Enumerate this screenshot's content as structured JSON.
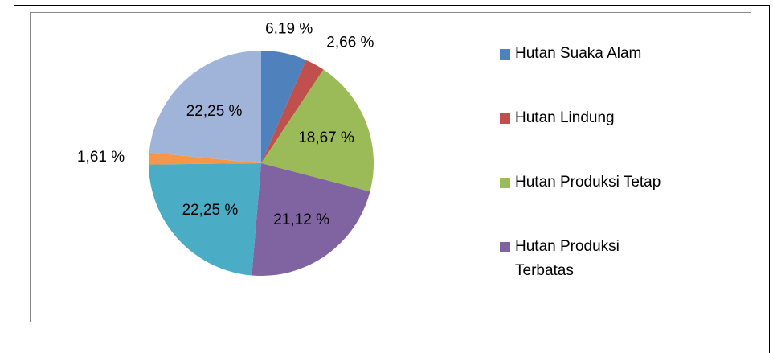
{
  "chart_data": {
    "type": "pie",
    "categories": [
      "Hutan Suaka Alam",
      "Hutan Lindung",
      "Hutan Produksi Tetap",
      "Hutan Produksi Terbatas",
      null,
      null,
      null
    ],
    "values": [
      6.19,
      2.66,
      18.67,
      21.12,
      22.25,
      1.61,
      22.25
    ],
    "value_labels": [
      "6,19 %",
      "2,66 %",
      "18,67 %",
      "21,12 %",
      "22,25 %",
      "1,61 %",
      "22,25 %"
    ],
    "colors": [
      "#4f81bd",
      "#c0504d",
      "#9bbb59",
      "#8064a2",
      "#4bacc6",
      "#f79646",
      "#a0b4d9"
    ],
    "legend": "right"
  }
}
